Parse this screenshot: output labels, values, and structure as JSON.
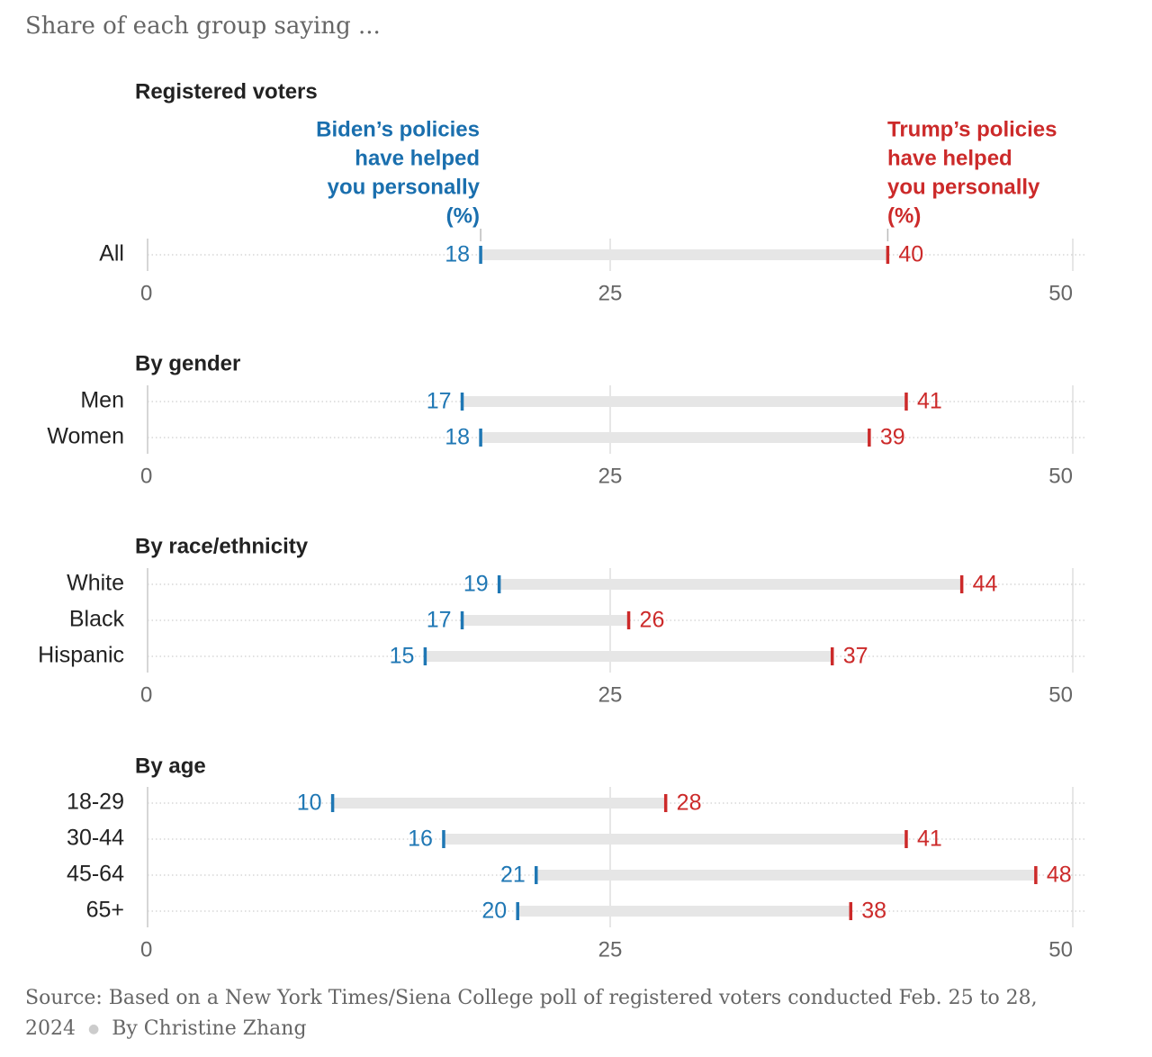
{
  "subtitle": "Share of each group saying ...",
  "legend": {
    "biden": [
      "Biden’s policies",
      "have helped",
      "you personally",
      "(%)"
    ],
    "trump": [
      "Trump’s policies",
      "have helped",
      "you personally",
      "(%)"
    ]
  },
  "colors": {
    "biden": "#1f77b4",
    "trump": "#cc2a2a",
    "bar": "#e6e6e6",
    "grid": "#dddddd"
  },
  "footer": {
    "source": "Source:  Based on a New York Times/Siena College poll of registered voters conducted Feb. 25 to 28, 2024",
    "byline": "By Christine Zhang"
  },
  "chart_data": {
    "type": "dumbbell",
    "xlim": [
      0,
      50
    ],
    "ticks": [
      0,
      25,
      50
    ],
    "series": [
      {
        "name": "Biden’s policies have helped you personally (%)",
        "key": "biden"
      },
      {
        "name": "Trump’s policies have helped you personally (%)",
        "key": "trump"
      }
    ],
    "groups": [
      {
        "title": "Registered voters",
        "rows": [
          {
            "label": "All",
            "biden": 18,
            "trump": 40
          }
        ]
      },
      {
        "title": "By gender",
        "rows": [
          {
            "label": "Men",
            "biden": 17,
            "trump": 41
          },
          {
            "label": "Women",
            "biden": 18,
            "trump": 39
          }
        ]
      },
      {
        "title": "By race/ethnicity",
        "rows": [
          {
            "label": "White",
            "biden": 19,
            "trump": 44
          },
          {
            "label": "Black",
            "biden": 17,
            "trump": 26
          },
          {
            "label": "Hispanic",
            "biden": 15,
            "trump": 37
          }
        ]
      },
      {
        "title": "By age",
        "rows": [
          {
            "label": "18-29",
            "biden": 10,
            "trump": 28
          },
          {
            "label": "30-44",
            "biden": 16,
            "trump": 41
          },
          {
            "label": "45-64",
            "biden": 21,
            "trump": 48
          },
          {
            "label": "65+",
            "biden": 20,
            "trump": 38
          }
        ]
      }
    ]
  }
}
